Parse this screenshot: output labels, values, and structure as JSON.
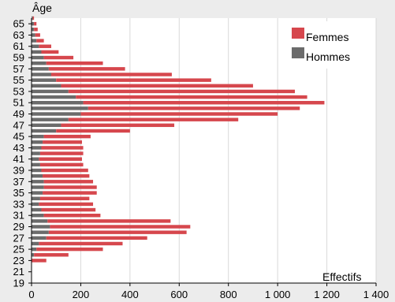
{
  "chart_data": {
    "type": "bar",
    "orientation": "horizontal",
    "stacked": true,
    "ylabel": "Âge",
    "xlabel": "Effectifs",
    "xlim": [
      0,
      1400
    ],
    "x_ticks": [
      0,
      200,
      400,
      600,
      800,
      1000,
      1200,
      1400
    ],
    "x_tick_labels": [
      "0",
      "200",
      "400",
      "600",
      "800",
      "1 000",
      "1 200",
      "1 400"
    ],
    "y_tick_labels": [
      "19",
      "21",
      "23",
      "25",
      "27",
      "29",
      "31",
      "33",
      "35",
      "37",
      "39",
      "41",
      "43",
      "45",
      "47",
      "49",
      "51",
      "53",
      "55",
      "57",
      "59",
      "61",
      "63",
      "65"
    ],
    "grid": true,
    "legend_position": "top-right",
    "categories": [
      19,
      20,
      21,
      22,
      23,
      24,
      25,
      26,
      27,
      28,
      29,
      30,
      31,
      32,
      33,
      34,
      35,
      36,
      37,
      38,
      39,
      40,
      41,
      42,
      43,
      44,
      45,
      46,
      47,
      48,
      49,
      50,
      51,
      52,
      53,
      54,
      55,
      56,
      57,
      58,
      59,
      60,
      61,
      62,
      63,
      64,
      65,
      66
    ],
    "series": [
      {
        "name": "Hommes",
        "color": "#6b6b6b",
        "values": [
          0,
          0,
          0,
          0,
          0,
          10,
          20,
          30,
          60,
          70,
          75,
          65,
          50,
          40,
          30,
          35,
          45,
          50,
          50,
          45,
          40,
          35,
          30,
          35,
          40,
          45,
          50,
          100,
          120,
          150,
          200,
          230,
          210,
          180,
          150,
          120,
          100,
          80,
          70,
          60,
          50,
          40,
          30,
          20,
          15,
          10,
          10,
          5
        ]
      },
      {
        "name": "Femmes",
        "color": "#d6474d",
        "values": [
          0,
          0,
          0,
          0,
          60,
          140,
          270,
          340,
          410,
          560,
          570,
          500,
          230,
          220,
          220,
          200,
          220,
          215,
          200,
          190,
          190,
          175,
          175,
          175,
          170,
          160,
          190,
          300,
          460,
          690,
          800,
          860,
          980,
          940,
          920,
          780,
          630,
          490,
          310,
          230,
          120,
          70,
          50,
          30,
          20,
          15,
          10,
          5
        ]
      }
    ]
  }
}
